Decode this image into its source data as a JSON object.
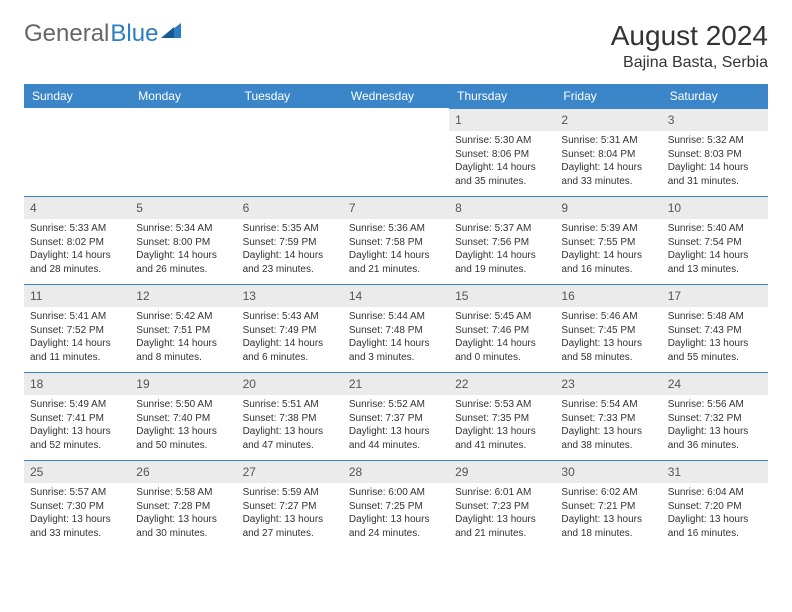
{
  "brand": {
    "part1": "General",
    "part2": "Blue"
  },
  "title": "August 2024",
  "location": "Bajina Basta, Serbia",
  "colors": {
    "header_bg": "#3b86c8",
    "header_text": "#ffffff",
    "daynum_bg": "#ebebeb",
    "daynum_border": "#3b86c8",
    "text": "#333333",
    "logo_gray": "#666666",
    "logo_blue": "#2d7dc4",
    "page_bg": "#ffffff"
  },
  "fonts": {
    "title_size_pt": 21,
    "location_size_pt": 12,
    "dayheader_size_pt": 9,
    "daynum_size_pt": 9,
    "cell_size_pt": 7.5
  },
  "day_headers": [
    "Sunday",
    "Monday",
    "Tuesday",
    "Wednesday",
    "Thursday",
    "Friday",
    "Saturday"
  ],
  "weeks": [
    [
      null,
      null,
      null,
      null,
      {
        "n": "1",
        "sr": "Sunrise: 5:30 AM",
        "ss": "Sunset: 8:06 PM",
        "dl": "Daylight: 14 hours and 35 minutes."
      },
      {
        "n": "2",
        "sr": "Sunrise: 5:31 AM",
        "ss": "Sunset: 8:04 PM",
        "dl": "Daylight: 14 hours and 33 minutes."
      },
      {
        "n": "3",
        "sr": "Sunrise: 5:32 AM",
        "ss": "Sunset: 8:03 PM",
        "dl": "Daylight: 14 hours and 31 minutes."
      }
    ],
    [
      {
        "n": "4",
        "sr": "Sunrise: 5:33 AM",
        "ss": "Sunset: 8:02 PM",
        "dl": "Daylight: 14 hours and 28 minutes."
      },
      {
        "n": "5",
        "sr": "Sunrise: 5:34 AM",
        "ss": "Sunset: 8:00 PM",
        "dl": "Daylight: 14 hours and 26 minutes."
      },
      {
        "n": "6",
        "sr": "Sunrise: 5:35 AM",
        "ss": "Sunset: 7:59 PM",
        "dl": "Daylight: 14 hours and 23 minutes."
      },
      {
        "n": "7",
        "sr": "Sunrise: 5:36 AM",
        "ss": "Sunset: 7:58 PM",
        "dl": "Daylight: 14 hours and 21 minutes."
      },
      {
        "n": "8",
        "sr": "Sunrise: 5:37 AM",
        "ss": "Sunset: 7:56 PM",
        "dl": "Daylight: 14 hours and 19 minutes."
      },
      {
        "n": "9",
        "sr": "Sunrise: 5:39 AM",
        "ss": "Sunset: 7:55 PM",
        "dl": "Daylight: 14 hours and 16 minutes."
      },
      {
        "n": "10",
        "sr": "Sunrise: 5:40 AM",
        "ss": "Sunset: 7:54 PM",
        "dl": "Daylight: 14 hours and 13 minutes."
      }
    ],
    [
      {
        "n": "11",
        "sr": "Sunrise: 5:41 AM",
        "ss": "Sunset: 7:52 PM",
        "dl": "Daylight: 14 hours and 11 minutes."
      },
      {
        "n": "12",
        "sr": "Sunrise: 5:42 AM",
        "ss": "Sunset: 7:51 PM",
        "dl": "Daylight: 14 hours and 8 minutes."
      },
      {
        "n": "13",
        "sr": "Sunrise: 5:43 AM",
        "ss": "Sunset: 7:49 PM",
        "dl": "Daylight: 14 hours and 6 minutes."
      },
      {
        "n": "14",
        "sr": "Sunrise: 5:44 AM",
        "ss": "Sunset: 7:48 PM",
        "dl": "Daylight: 14 hours and 3 minutes."
      },
      {
        "n": "15",
        "sr": "Sunrise: 5:45 AM",
        "ss": "Sunset: 7:46 PM",
        "dl": "Daylight: 14 hours and 0 minutes."
      },
      {
        "n": "16",
        "sr": "Sunrise: 5:46 AM",
        "ss": "Sunset: 7:45 PM",
        "dl": "Daylight: 13 hours and 58 minutes."
      },
      {
        "n": "17",
        "sr": "Sunrise: 5:48 AM",
        "ss": "Sunset: 7:43 PM",
        "dl": "Daylight: 13 hours and 55 minutes."
      }
    ],
    [
      {
        "n": "18",
        "sr": "Sunrise: 5:49 AM",
        "ss": "Sunset: 7:41 PM",
        "dl": "Daylight: 13 hours and 52 minutes."
      },
      {
        "n": "19",
        "sr": "Sunrise: 5:50 AM",
        "ss": "Sunset: 7:40 PM",
        "dl": "Daylight: 13 hours and 50 minutes."
      },
      {
        "n": "20",
        "sr": "Sunrise: 5:51 AM",
        "ss": "Sunset: 7:38 PM",
        "dl": "Daylight: 13 hours and 47 minutes."
      },
      {
        "n": "21",
        "sr": "Sunrise: 5:52 AM",
        "ss": "Sunset: 7:37 PM",
        "dl": "Daylight: 13 hours and 44 minutes."
      },
      {
        "n": "22",
        "sr": "Sunrise: 5:53 AM",
        "ss": "Sunset: 7:35 PM",
        "dl": "Daylight: 13 hours and 41 minutes."
      },
      {
        "n": "23",
        "sr": "Sunrise: 5:54 AM",
        "ss": "Sunset: 7:33 PM",
        "dl": "Daylight: 13 hours and 38 minutes."
      },
      {
        "n": "24",
        "sr": "Sunrise: 5:56 AM",
        "ss": "Sunset: 7:32 PM",
        "dl": "Daylight: 13 hours and 36 minutes."
      }
    ],
    [
      {
        "n": "25",
        "sr": "Sunrise: 5:57 AM",
        "ss": "Sunset: 7:30 PM",
        "dl": "Daylight: 13 hours and 33 minutes."
      },
      {
        "n": "26",
        "sr": "Sunrise: 5:58 AM",
        "ss": "Sunset: 7:28 PM",
        "dl": "Daylight: 13 hours and 30 minutes."
      },
      {
        "n": "27",
        "sr": "Sunrise: 5:59 AM",
        "ss": "Sunset: 7:27 PM",
        "dl": "Daylight: 13 hours and 27 minutes."
      },
      {
        "n": "28",
        "sr": "Sunrise: 6:00 AM",
        "ss": "Sunset: 7:25 PM",
        "dl": "Daylight: 13 hours and 24 minutes."
      },
      {
        "n": "29",
        "sr": "Sunrise: 6:01 AM",
        "ss": "Sunset: 7:23 PM",
        "dl": "Daylight: 13 hours and 21 minutes."
      },
      {
        "n": "30",
        "sr": "Sunrise: 6:02 AM",
        "ss": "Sunset: 7:21 PM",
        "dl": "Daylight: 13 hours and 18 minutes."
      },
      {
        "n": "31",
        "sr": "Sunrise: 6:04 AM",
        "ss": "Sunset: 7:20 PM",
        "dl": "Daylight: 13 hours and 16 minutes."
      }
    ]
  ]
}
